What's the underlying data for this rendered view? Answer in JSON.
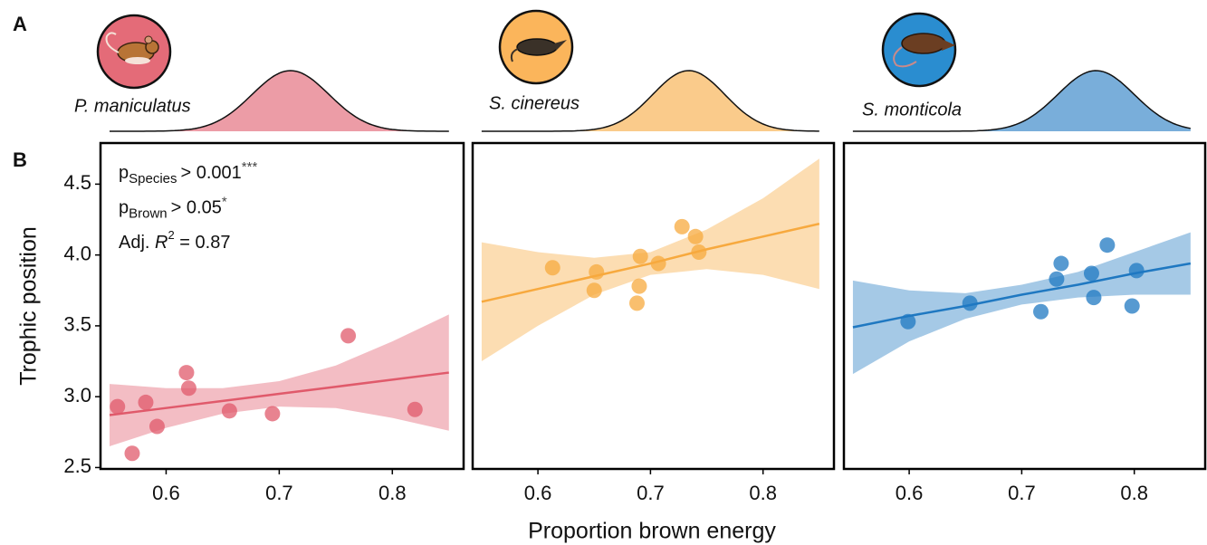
{
  "figure": {
    "panel_labels": [
      "A",
      "B"
    ],
    "xlabel": "Proportion brown energy",
    "ylabel": "Trophic position"
  },
  "chart_data": [
    {
      "type": "scatter",
      "species": "P. maniculatus",
      "color": "#e05a6b",
      "x": [
        0.557,
        0.57,
        0.582,
        0.592,
        0.618,
        0.62,
        0.656,
        0.694,
        0.761,
        0.82
      ],
      "values": [
        2.93,
        2.6,
        2.96,
        2.79,
        3.17,
        3.06,
        2.9,
        2.88,
        3.43,
        2.91
      ],
      "xlim": [
        0.542,
        0.863
      ],
      "ylim": [
        2.49,
        4.79
      ],
      "xticks": [
        0.6,
        0.7,
        0.8
      ],
      "yticks": [
        2.5,
        {
          "value": 3,
          "label": "3.0"
        },
        3.5,
        {
          "value": 4,
          "label": "4.0"
        },
        4.5
      ],
      "fit": {
        "x": [
          0.55,
          0.6,
          0.65,
          0.7,
          0.75,
          0.8,
          0.85
        ],
        "y": [
          2.87,
          2.92,
          2.97,
          3.02,
          3.07,
          3.12,
          3.17
        ],
        "lower": [
          2.65,
          2.78,
          2.88,
          2.93,
          2.92,
          2.85,
          2.76
        ],
        "upper": [
          3.09,
          3.06,
          3.06,
          3.11,
          3.22,
          3.39,
          3.58
        ]
      },
      "density": {
        "mean": 0.71,
        "sd": 0.034
      },
      "annotations": [
        {
          "symbol": "p",
          "subscript": "Species",
          "text": "> 0.001",
          "superscript": "***"
        },
        {
          "symbol": "p",
          "subscript": "Brown",
          "text": "> 0.05",
          "superscript": "*"
        },
        {
          "symbol": "Adj. ",
          "italic": "R",
          "superscript": "2",
          "text": " = 0.87"
        }
      ]
    },
    {
      "type": "scatter",
      "species": "S. cinereus",
      "color": "#f7a93e",
      "x": [
        0.613,
        0.652,
        0.65,
        0.691,
        0.707,
        0.69,
        0.688,
        0.728,
        0.74,
        0.743
      ],
      "values": [
        3.91,
        3.88,
        3.75,
        3.99,
        3.94,
        3.78,
        3.66,
        4.2,
        4.13,
        4.02
      ],
      "xlim": [
        0.542,
        0.863
      ],
      "ylim": [
        2.49,
        4.79
      ],
      "xticks": [
        0.6,
        0.7,
        0.8
      ],
      "fit": {
        "x": [
          0.55,
          0.6,
          0.65,
          0.7,
          0.75,
          0.8,
          0.85
        ],
        "y": [
          3.67,
          3.76,
          3.85,
          3.94,
          4.04,
          4.13,
          4.22
        ],
        "lower": [
          3.25,
          3.5,
          3.72,
          3.86,
          3.9,
          3.86,
          3.76
        ],
        "upper": [
          4.09,
          4.02,
          3.98,
          4.02,
          4.18,
          4.4,
          4.68
        ]
      },
      "density": {
        "mean": 0.734,
        "sd": 0.032
      }
    },
    {
      "type": "scatter",
      "species": "S. monticola",
      "color": "#1f78c1",
      "x": [
        0.599,
        0.654,
        0.717,
        0.731,
        0.735,
        0.762,
        0.764,
        0.776,
        0.798,
        0.802
      ],
      "values": [
        3.53,
        3.66,
        3.6,
        3.83,
        3.94,
        3.87,
        3.7,
        4.07,
        3.64,
        3.89
      ],
      "xlim": [
        0.542,
        0.863
      ],
      "ylim": [
        2.49,
        4.79
      ],
      "xticks": [
        0.6,
        0.7,
        0.8
      ],
      "fit": {
        "x": [
          0.55,
          0.6,
          0.65,
          0.7,
          0.75,
          0.8,
          0.85
        ],
        "y": [
          3.49,
          3.57,
          3.64,
          3.72,
          3.79,
          3.87,
          3.94
        ],
        "lower": [
          3.16,
          3.39,
          3.55,
          3.65,
          3.7,
          3.72,
          3.72
        ],
        "upper": [
          3.82,
          3.75,
          3.73,
          3.79,
          3.88,
          4.02,
          4.16
        ]
      },
      "density": {
        "mean": 0.766,
        "sd": 0.034
      }
    }
  ]
}
